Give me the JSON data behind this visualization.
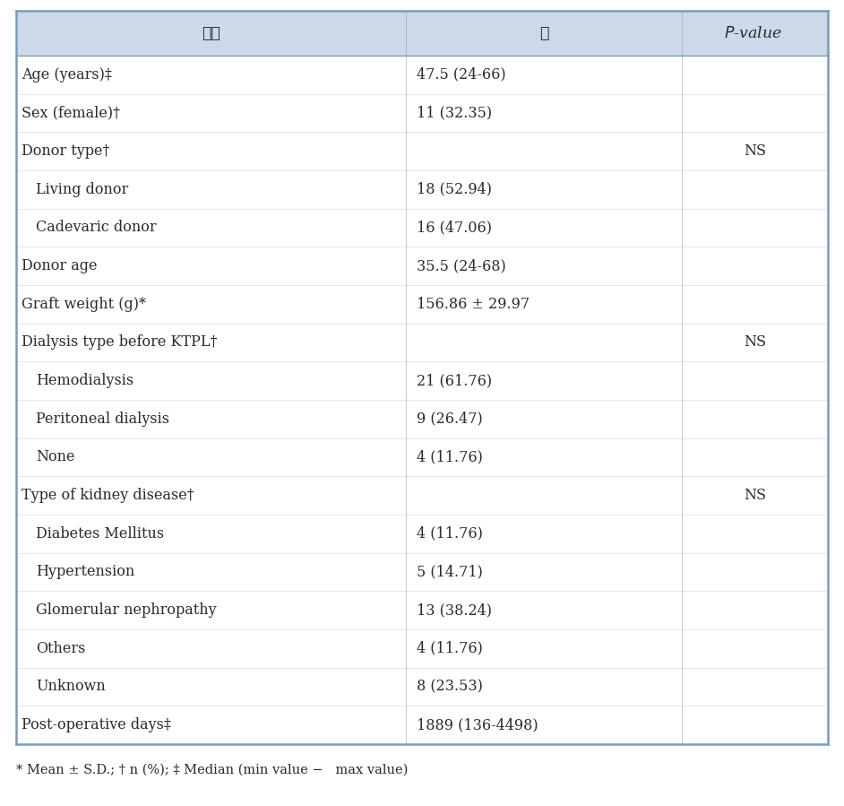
{
  "header": [
    "항목",
    "값",
    "P-value"
  ],
  "rows": [
    {
      "col1": "Age (years)‡",
      "col2": "47.5 (24-66)",
      "col3": "",
      "indent": false
    },
    {
      "col1": "Sex (female)†",
      "col2": "11 (32.35)",
      "col3": "",
      "indent": false
    },
    {
      "col1": "Donor type†",
      "col2": "",
      "col3": "NS",
      "indent": false
    },
    {
      "col1": "  Living donor",
      "col2": "18 (52.94)",
      "col3": "",
      "indent": true
    },
    {
      "col1": "  Cadevaric donor",
      "col2": "16 (47.06)",
      "col3": "",
      "indent": true
    },
    {
      "col1": "Donor age",
      "col2": "35.5 (24-68)",
      "col3": "",
      "indent": false
    },
    {
      "col1": "Graft weight (g)*",
      "col2": "156.86 ± 29.97",
      "col3": "",
      "indent": false
    },
    {
      "col1": "Dialysis type before KTPL†",
      "col2": "",
      "col3": "NS",
      "indent": false
    },
    {
      "col1": "  Hemodialysis",
      "col2": "21 (61.76)",
      "col3": "",
      "indent": true
    },
    {
      "col1": "  Peritoneal dialysis",
      "col2": "9 (26.47)",
      "col3": "",
      "indent": true
    },
    {
      "col1": "  None",
      "col2": "4 (11.76)",
      "col3": "",
      "indent": true
    },
    {
      "col1": "Type of kidney disease†",
      "col2": "",
      "col3": "NS",
      "indent": false
    },
    {
      "col1": "  Diabetes Mellitus",
      "col2": "4 (11.76)",
      "col3": "",
      "indent": true
    },
    {
      "col1": "  Hypertension",
      "col2": "5 (14.71)",
      "col3": "",
      "indent": true
    },
    {
      "col1": "  Glomerular nephropathy",
      "col2": "13 (38.24)",
      "col3": "",
      "indent": true
    },
    {
      "col1": "  Others",
      "col2": "4 (11.76)",
      "col3": "",
      "indent": true
    },
    {
      "col1": "  Unknown",
      "col2": "8 (23.53)",
      "col3": "",
      "indent": true
    },
    {
      "col1": "Post-operative days‡",
      "col2": "1889 (136-4498)",
      "col3": "",
      "indent": false
    }
  ],
  "footnote": "* Mean ± S.D.; † n (%); ‡ Median (min value −   max value)",
  "header_bg": "#cdd8e8",
  "border_color": "#7a9abf",
  "text_color": "#2a2a2a",
  "row_line_color": "#aabbd0",
  "font_size": 11.5,
  "header_font_size": 12.5,
  "footnote_font_size": 10.5
}
